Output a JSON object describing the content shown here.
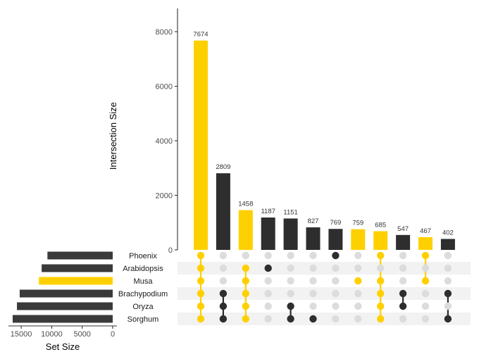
{
  "chart_data": {
    "type": "bar",
    "subtype": "upset",
    "intersection_axis": {
      "ylabel": "Intersection Size",
      "ylim": [
        0,
        8800
      ],
      "ticks": [
        0,
        2000,
        4000,
        6000,
        8000
      ]
    },
    "set_size_axis": {
      "xlabel": "Set Size",
      "xlim": [
        17000,
        0
      ],
      "ticks": [
        15000,
        10000,
        5000,
        0
      ]
    },
    "sets": [
      {
        "name": "Phoenix",
        "size": 10700,
        "highlighted": false
      },
      {
        "name": "Arabidopsis",
        "size": 11650,
        "highlighted": false
      },
      {
        "name": "Musa",
        "size": 12100,
        "highlighted": true
      },
      {
        "name": "Brachypodium",
        "size": 15250,
        "highlighted": false
      },
      {
        "name": "Oryza",
        "size": 15700,
        "highlighted": false
      },
      {
        "name": "Sorghum",
        "size": 16400,
        "highlighted": false
      }
    ],
    "intersections": [
      {
        "value": 7674,
        "label": "7674",
        "highlighted": true,
        "members": [
          "Phoenix",
          "Arabidopsis",
          "Musa",
          "Brachypodium",
          "Oryza",
          "Sorghum"
        ]
      },
      {
        "value": 2809,
        "label": "2809",
        "highlighted": false,
        "members": [
          "Brachypodium",
          "Oryza",
          "Sorghum"
        ]
      },
      {
        "value": 1458,
        "label": "1458",
        "highlighted": true,
        "members": [
          "Arabidopsis",
          "Musa",
          "Brachypodium",
          "Oryza",
          "Sorghum"
        ]
      },
      {
        "value": 1187,
        "label": "1187",
        "highlighted": false,
        "members": [
          "Arabidopsis"
        ]
      },
      {
        "value": 1151,
        "label": "1151",
        "highlighted": false,
        "members": [
          "Oryza",
          "Sorghum"
        ]
      },
      {
        "value": 827,
        "label": "827",
        "highlighted": false,
        "members": [
          "Sorghum"
        ]
      },
      {
        "value": 769,
        "label": "769",
        "highlighted": false,
        "members": [
          "Phoenix"
        ]
      },
      {
        "value": 759,
        "label": "759",
        "highlighted": true,
        "members": [
          "Musa"
        ]
      },
      {
        "value": 685,
        "label": "685",
        "highlighted": true,
        "members": [
          "Phoenix",
          "Musa",
          "Brachypodium",
          "Oryza",
          "Sorghum"
        ]
      },
      {
        "value": 547,
        "label": "547",
        "highlighted": false,
        "members": [
          "Brachypodium",
          "Oryza"
        ]
      },
      {
        "value": 467,
        "label": "467",
        "highlighted": true,
        "members": [
          "Phoenix",
          "Musa"
        ]
      },
      {
        "value": 402,
        "label": "402",
        "highlighted": false,
        "members": [
          "Brachypodium",
          "Sorghum"
        ]
      }
    ],
    "colors": {
      "highlight": "#FFD000",
      "default": "#2E2E2E",
      "setbar_default": "#3A3A3A",
      "empty_dot": "#DCDCDC",
      "stripe": "#F2F2F2",
      "axis": "#333333"
    },
    "grid": false,
    "legend": "none"
  }
}
